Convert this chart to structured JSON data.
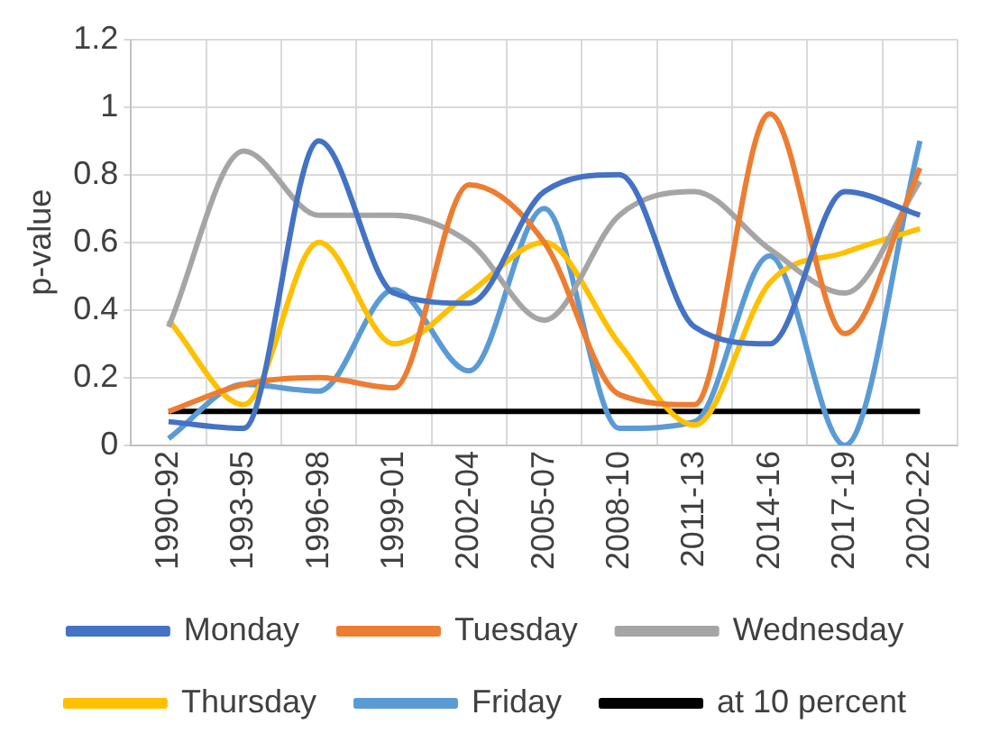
{
  "chart_data": {
    "type": "line",
    "ylabel": "p-value",
    "categories": [
      "1990-92",
      "1993-95",
      "1996-98",
      "1999-01",
      "2002-04",
      "2005-07",
      "2008-10",
      "2011-13",
      "2014-16",
      "2017-19",
      "2020-22"
    ],
    "series": [
      {
        "name": "Monday",
        "color": "#4472c4",
        "values": [
          0.07,
          0.05,
          0.9,
          0.45,
          0.42,
          0.75,
          0.8,
          0.35,
          0.3,
          0.75,
          0.68
        ]
      },
      {
        "name": "Tuesday",
        "color": "#ed7d31",
        "values": [
          0.1,
          0.18,
          0.2,
          0.17,
          0.77,
          0.6,
          0.15,
          0.12,
          0.98,
          0.33,
          0.82
        ]
      },
      {
        "name": "Wednesday",
        "color": "#a5a5a5",
        "values": [
          0.35,
          0.87,
          0.68,
          0.68,
          0.6,
          0.37,
          0.68,
          0.75,
          0.58,
          0.45,
          0.78
        ]
      },
      {
        "name": "Thursday",
        "color": "#ffc000",
        "values": [
          0.37,
          0.12,
          0.6,
          0.3,
          0.45,
          0.6,
          0.3,
          0.06,
          0.48,
          0.57,
          0.64
        ]
      },
      {
        "name": "Friday",
        "color": "#5b9bd5",
        "values": [
          0.02,
          0.18,
          0.16,
          0.46,
          0.22,
          0.7,
          0.05,
          0.07,
          0.56,
          0.0,
          0.9
        ]
      },
      {
        "name": "at 10 percent",
        "color": "#000000",
        "values": [
          0.1,
          0.1,
          0.1,
          0.1,
          0.1,
          0.1,
          0.1,
          0.1,
          0.1,
          0.1,
          0.1
        ]
      }
    ],
    "ylim": [
      0,
      1.2
    ],
    "yticks": [
      0,
      0.2,
      0.4,
      0.6,
      0.8,
      1,
      1.2
    ],
    "grid": true,
    "legend": "bottom",
    "marker": "none",
    "line_style": "solid"
  }
}
